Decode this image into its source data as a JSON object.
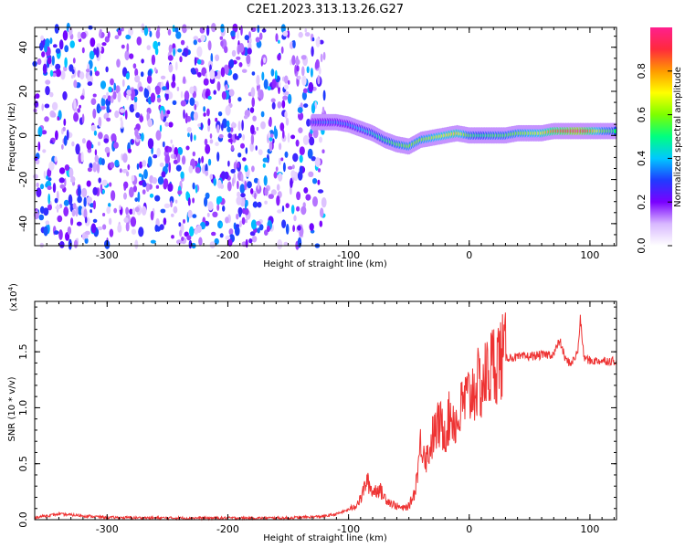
{
  "title": "C2E1.2023.313.13.26.G27",
  "chart_data": [
    {
      "type": "heatmap",
      "xlabel": "Height of straight line (km)",
      "ylabel": "Frequency (Hz)",
      "xlim": [
        -360,
        122
      ],
      "ylim": [
        -50,
        49
      ],
      "xticks": [
        -300,
        -200,
        -100,
        0,
        100
      ],
      "yticks": [
        -40,
        -20,
        0,
        20,
        40
      ],
      "colorbar": {
        "label": "Normalized spectral amplitude",
        "range": [
          0.0,
          1.0
        ],
        "ticks": [
          "0.0",
          "0.2",
          "0.4",
          "0.6",
          "0.8"
        ],
        "colormap": [
          "#ffffff",
          "#d8b8ff",
          "#7a00ff",
          "#1f3bff",
          "#00c8ff",
          "#00ff80",
          "#7dff00",
          "#ffff00",
          "#ff9a00",
          "#ff2a3c",
          "#ff1f8e"
        ]
      },
      "noise_region_x": [
        -360,
        -120
      ],
      "ridge": {
        "x": [
          -130,
          -120,
          -110,
          -100,
          -90,
          -80,
          -70,
          -60,
          -50,
          -40,
          -30,
          -20,
          -10,
          0,
          10,
          20,
          30,
          40,
          50,
          60,
          70,
          80,
          90,
          100,
          110,
          122
        ],
        "frequency": [
          6,
          6,
          6,
          5,
          3,
          1,
          -2,
          -4,
          -5,
          -2,
          -1,
          0,
          1,
          0,
          0,
          0,
          0,
          1,
          1,
          1,
          2,
          2,
          2,
          2,
          2,
          2
        ],
        "amplitude": [
          0.3,
          0.35,
          0.35,
          0.35,
          0.4,
          0.45,
          0.5,
          0.55,
          0.6,
          0.6,
          0.65,
          0.7,
          0.75,
          0.55,
          0.5,
          0.55,
          0.55,
          0.6,
          0.65,
          0.7,
          0.85,
          0.9,
          1.0,
          0.85,
          0.6,
          0.5
        ]
      }
    },
    {
      "type": "line",
      "xlabel": "Height of straight line (km)",
      "ylabel": "SNR (10 * v/v)",
      "multiplier": "(x10",
      "multiplier_exp": "4",
      "multiplier_close": ")",
      "xlim": [
        -360,
        122
      ],
      "ylim": [
        0,
        1.95
      ],
      "xticks": [
        -300,
        -200,
        -100,
        0,
        100
      ],
      "yticks": [
        "0.0",
        "0.5",
        "1.0",
        "1.5"
      ],
      "ytick_values": [
        0.0,
        0.5,
        1.0,
        1.5
      ],
      "series": [
        {
          "color": "#ee3333",
          "x": [
            -360,
            -340,
            -320,
            -300,
            -250,
            -200,
            -150,
            -120,
            -110,
            -100,
            -95,
            -90,
            -85,
            -80,
            -75,
            -70,
            -65,
            -60,
            -55,
            -50,
            -45,
            -40,
            -35,
            -30,
            -25,
            -20,
            -15,
            -10,
            -5,
            0,
            5,
            10,
            15,
            20,
            25,
            30,
            40,
            50,
            60,
            70,
            75,
            80,
            85,
            90,
            92,
            95,
            100,
            110,
            122
          ],
          "values": [
            0.02,
            0.05,
            0.035,
            0.02,
            0.015,
            0.015,
            0.015,
            0.03,
            0.05,
            0.09,
            0.12,
            0.18,
            0.35,
            0.25,
            0.28,
            0.2,
            0.15,
            0.12,
            0.1,
            0.12,
            0.25,
            0.7,
            0.55,
            0.75,
            0.85,
            0.8,
            0.95,
            0.85,
            1.05,
            1.1,
            1.2,
            1.2,
            1.3,
            1.4,
            1.45,
            1.45,
            1.45,
            1.46,
            1.47,
            1.48,
            1.6,
            1.42,
            1.4,
            1.5,
            1.8,
            1.45,
            1.42,
            1.42,
            1.42
          ]
        }
      ]
    }
  ]
}
